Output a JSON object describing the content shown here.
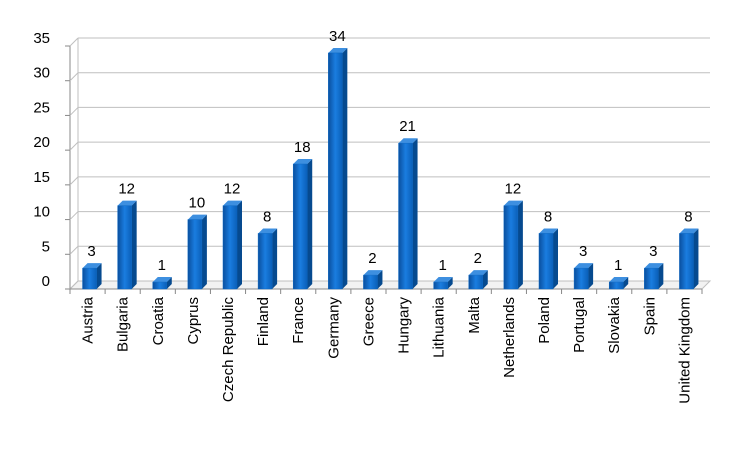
{
  "chart_data": {
    "type": "bar",
    "categories": [
      "Austria",
      "Bulgaria",
      "Croatia",
      "Cyprus",
      "Czech Republic",
      "Finland",
      "France",
      "Germany",
      "Greece",
      "Hungary",
      "Lithuania",
      "Malta",
      "Netherlands",
      "Poland",
      "Portugal",
      "Slovakia",
      "Spain",
      "United Kingdom"
    ],
    "values": [
      3,
      12,
      1,
      10,
      12,
      8,
      18,
      34,
      2,
      21,
      1,
      2,
      12,
      8,
      3,
      1,
      3,
      8
    ],
    "color": "#0a66c2",
    "ylim": [
      0,
      35
    ],
    "yticks": [
      0,
      5,
      10,
      15,
      20,
      25,
      30,
      35
    ],
    "grid": true
  }
}
